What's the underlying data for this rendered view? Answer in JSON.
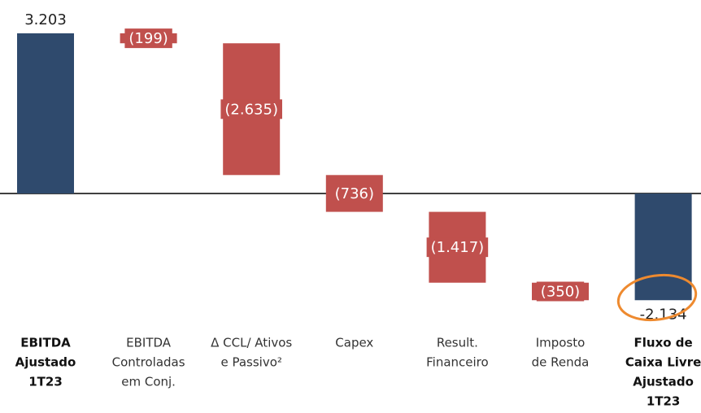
{
  "chart_data": {
    "type": "waterfall",
    "categories": [
      [
        "EBITDA",
        "Ajustado",
        "1T23"
      ],
      [
        "EBITDA",
        "Controladas",
        "em Conj."
      ],
      [
        "Δ CCL/ Ativos",
        "e Passivo²"
      ],
      [
        "Capex"
      ],
      [
        "Result.",
        "Financeiro"
      ],
      [
        "Imposto",
        "de Renda"
      ],
      [
        "Fluxo de",
        "Caixa Livre",
        "Ajustado",
        "1T23"
      ]
    ],
    "values": [
      3203,
      -199,
      -2635,
      -736,
      -1417,
      -350,
      -2134
    ],
    "value_labels": [
      "3.203",
      "(199)",
      "(2.635)",
      "(736)",
      "(1.417)",
      "(350)",
      "-2.134"
    ],
    "measures": [
      "absolute",
      "relative",
      "relative",
      "relative",
      "relative",
      "relative",
      "total"
    ],
    "colors": {
      "absolute": "#2f4a6d",
      "relative": "#c0504d",
      "total": "#2f4a6d"
    }
  }
}
